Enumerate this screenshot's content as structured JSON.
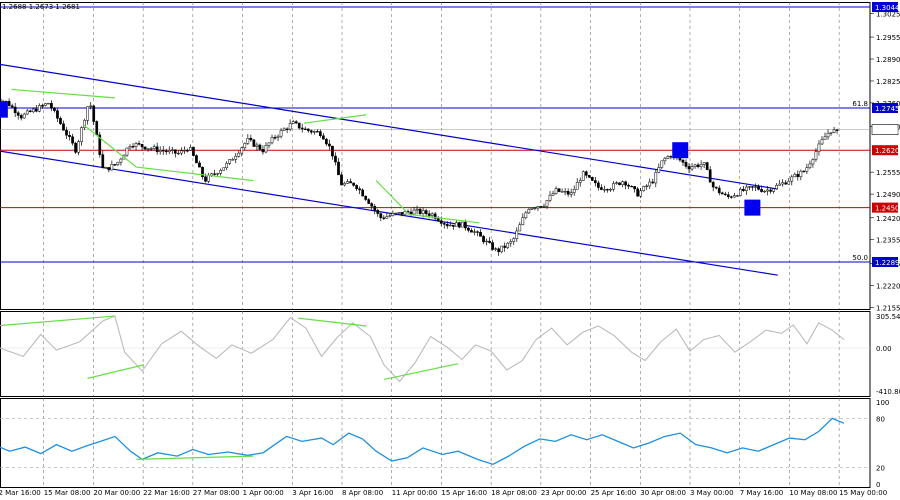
{
  "chart_data": [
    {
      "type": "candlestick",
      "ohlc_readout": "1.2688 1.2673 1.2681",
      "ylim": [
        1.2155,
        1.3044
      ],
      "y_ticks": [
        "1.3025",
        "1.2955",
        "1.2890",
        "1.2825",
        "1.2760",
        "1.2690",
        "1.2555",
        "1.2490",
        "1.2420",
        "1.2355",
        "1.2285",
        "1.2220",
        "1.2155"
      ],
      "x_ticks": [
        "12 Mar 16:00",
        "15 Mar 08:00",
        "20 Mar 00:00",
        "22 Mar 16:00",
        "27 Mar 08:00",
        "1 Apr 00:00",
        "3 Apr 16:00",
        "8 Apr 08:00",
        "11 Apr 00:00",
        "15 Apr 16:00",
        "18 Apr 08:00",
        "23 Apr 00:00",
        "25 Apr 16:00",
        "30 Apr 08:00",
        "3 May 00:00",
        "7 May 16:00",
        "10 May 08:00",
        "15 May 00:00"
      ],
      "x_count": 18,
      "close_path": [
        [
          0,
          1.278
        ],
        [
          0.7,
          1.276
        ],
        [
          1.4,
          1.272
        ],
        [
          2.1,
          1.274
        ],
        [
          2.8,
          1.276
        ],
        [
          3.5,
          1.269
        ],
        [
          4.2,
          1.262
        ],
        [
          4.9,
          1.277
        ],
        [
          5.6,
          1.256
        ],
        [
          6.3,
          1.258
        ],
        [
          7.0,
          1.264
        ],
        [
          8.5,
          1.262
        ],
        [
          9.5,
          1.261
        ],
        [
          10.0,
          1.263
        ],
        [
          10.8,
          1.253
        ],
        [
          12.0,
          1.258
        ],
        [
          13.0,
          1.265
        ],
        [
          13.8,
          1.262
        ],
        [
          14.4,
          1.266
        ],
        [
          15.3,
          1.27
        ],
        [
          16.0,
          1.268
        ],
        [
          16.8,
          1.267
        ],
        [
          17.3,
          1.262
        ],
        [
          17.8,
          1.252
        ],
        [
          18.5,
          1.252
        ],
        [
          19.2,
          1.247
        ],
        [
          19.8,
          1.242
        ],
        [
          20.6,
          1.243
        ],
        [
          21.5,
          1.244
        ],
        [
          22.5,
          1.243
        ],
        [
          23.2,
          1.24
        ],
        [
          24.0,
          1.24
        ],
        [
          24.6,
          1.238
        ],
        [
          25.2,
          1.235
        ],
        [
          25.8,
          1.232
        ],
        [
          26.6,
          1.235
        ],
        [
          27.4,
          1.245
        ],
        [
          28.2,
          1.246
        ],
        [
          28.8,
          1.25
        ],
        [
          29.6,
          1.249
        ],
        [
          30.2,
          1.255
        ],
        [
          31.0,
          1.251
        ],
        [
          31.6,
          1.251
        ],
        [
          32.3,
          1.253
        ],
        [
          33.0,
          1.249
        ],
        [
          33.8,
          1.253
        ],
        [
          34.3,
          1.259
        ],
        [
          34.8,
          1.261
        ],
        [
          35.6,
          1.257
        ],
        [
          36.4,
          1.258
        ],
        [
          36.9,
          1.251
        ],
        [
          37.6,
          1.248
        ],
        [
          38.4,
          1.25
        ],
        [
          39.0,
          1.251
        ],
        [
          39.6,
          1.25
        ],
        [
          40.4,
          1.252
        ],
        [
          41.0,
          1.254
        ],
        [
          41.6,
          1.256
        ],
        [
          42.1,
          1.261
        ],
        [
          42.5,
          1.265
        ],
        [
          42.9,
          1.268
        ],
        [
          43.4,
          1.267
        ]
      ],
      "price_lines": [
        {
          "value": 1.3044,
          "label": "1.3044",
          "color": "#0000cc"
        },
        {
          "value": 1.2745,
          "label": "1.2745",
          "color": "#0000cc",
          "tag": "61.8"
        },
        {
          "value": 1.2681,
          "label": "1.2681",
          "color": "#000000"
        },
        {
          "value": 1.262,
          "label": "1.2620",
          "color": "#cc0000"
        },
        {
          "value": 1.245,
          "label": "1.2450",
          "color": "#cc0000"
        },
        {
          "value": 1.2289,
          "label": "1.2289",
          "color": "#0000cc",
          "tag": "50.0"
        }
      ],
      "trend_channel": {
        "upper": [
          [
            0,
            1.2877
          ],
          [
            40.2,
            1.2505
          ]
        ],
        "lower": [
          [
            0,
            1.262
          ],
          [
            40.2,
            1.225
          ]
        ],
        "color": "#0000cc"
      },
      "divergence_lines": [
        {
          "points": [
            [
              0.9,
              1.28
            ],
            [
              6.2,
              1.2775
            ]
          ]
        },
        {
          "points": [
            [
              4.6,
              1.2695
            ],
            [
              7.3,
              1.257
            ],
            [
              13.3,
              1.253
            ]
          ]
        },
        {
          "points": [
            [
              15.9,
              1.27
            ],
            [
              19.1,
              1.2725
            ]
          ]
        },
        {
          "points": [
            [
              19.6,
              1.253
            ],
            [
              21.3,
              1.243
            ],
            [
              24.9,
              1.2405
            ]
          ]
        }
      ],
      "markers": [
        {
          "x": 0.3,
          "value": 1.274,
          "color": "#0000ee"
        },
        {
          "x": 35.2,
          "value": 1.262,
          "color": "#0000ee"
        },
        {
          "x": 38.9,
          "value": 1.245,
          "color": "#0000ee"
        }
      ],
      "colors": {
        "candle": "#000000",
        "channel": "#0000cc",
        "support": "#cc0000",
        "divergence": "#66dd44",
        "badge": "#0000cc"
      }
    },
    {
      "type": "line",
      "ylim": [
        -410.803,
        305.5401
      ],
      "y_ticks": [
        "305.5401",
        "0.00",
        "-410.803"
      ],
      "series_color": "#bbbbbb",
      "points": [
        [
          0,
          20
        ],
        [
          1.5,
          -80
        ],
        [
          2.4,
          130
        ],
        [
          3.2,
          -20
        ],
        [
          4.4,
          60
        ],
        [
          5.6,
          260
        ],
        [
          6.2,
          305
        ],
        [
          6.7,
          -40
        ],
        [
          7.6,
          -220
        ],
        [
          8.6,
          40
        ],
        [
          9.6,
          160
        ],
        [
          10.5,
          20
        ],
        [
          11.4,
          -100
        ],
        [
          12.2,
          30
        ],
        [
          13.2,
          -50
        ],
        [
          14.3,
          80
        ],
        [
          15.2,
          290
        ],
        [
          16.0,
          190
        ],
        [
          16.8,
          -80
        ],
        [
          17.6,
          100
        ],
        [
          18.4,
          240
        ],
        [
          19.3,
          110
        ],
        [
          20.0,
          -160
        ],
        [
          20.8,
          -320
        ],
        [
          21.6,
          -140
        ],
        [
          22.4,
          110
        ],
        [
          23.3,
          0
        ],
        [
          24.0,
          -110
        ],
        [
          24.7,
          30
        ],
        [
          25.5,
          -30
        ],
        [
          26.3,
          -210
        ],
        [
          27.1,
          -120
        ],
        [
          27.8,
          80
        ],
        [
          28.6,
          190
        ],
        [
          29.4,
          30
        ],
        [
          30.2,
          150
        ],
        [
          31.0,
          210
        ],
        [
          31.8,
          120
        ],
        [
          32.7,
          -40
        ],
        [
          33.4,
          -120
        ],
        [
          34.2,
          60
        ],
        [
          35.0,
          180
        ],
        [
          35.7,
          -30
        ],
        [
          36.4,
          80
        ],
        [
          37.2,
          120
        ],
        [
          38.0,
          -40
        ],
        [
          38.8,
          60
        ],
        [
          39.6,
          170
        ],
        [
          40.4,
          140
        ],
        [
          41.0,
          220
        ],
        [
          41.7,
          40
        ],
        [
          42.3,
          240
        ],
        [
          43.0,
          170
        ],
        [
          43.6,
          80
        ]
      ],
      "divergence_lines": [
        {
          "points": [
            [
              0,
              210
            ],
            [
              6.2,
              305
            ]
          ]
        },
        {
          "points": [
            [
              4.8,
              -290
            ],
            [
              7.7,
              -160
            ]
          ]
        },
        {
          "points": [
            [
              15.6,
              285
            ],
            [
              19.1,
              210
            ]
          ]
        },
        {
          "points": [
            [
              20.0,
              -300
            ],
            [
              23.8,
              -150
            ]
          ]
        }
      ]
    },
    {
      "type": "line",
      "ylim": [
        0,
        100
      ],
      "y_ticks": [
        "100",
        "80",
        "20",
        "0"
      ],
      "series_color": "#1e8fe0",
      "points": [
        [
          0,
          48
        ],
        [
          0.8,
          40
        ],
        [
          1.6,
          45
        ],
        [
          2.4,
          37
        ],
        [
          3.2,
          48
        ],
        [
          4.0,
          40
        ],
        [
          4.8,
          47
        ],
        [
          5.6,
          53
        ],
        [
          6.2,
          58
        ],
        [
          7.0,
          40
        ],
        [
          7.6,
          30
        ],
        [
          8.4,
          38
        ],
        [
          9.4,
          34
        ],
        [
          10.2,
          42
        ],
        [
          11.0,
          36
        ],
        [
          12.0,
          39
        ],
        [
          13.0,
          35
        ],
        [
          13.8,
          38
        ],
        [
          15.0,
          58
        ],
        [
          15.8,
          52
        ],
        [
          16.8,
          56
        ],
        [
          17.4,
          48
        ],
        [
          18.2,
          62
        ],
        [
          18.9,
          55
        ],
        [
          19.6,
          40
        ],
        [
          20.4,
          28
        ],
        [
          21.2,
          32
        ],
        [
          22.0,
          44
        ],
        [
          23.0,
          36
        ],
        [
          23.8,
          40
        ],
        [
          24.8,
          30
        ],
        [
          25.6,
          24
        ],
        [
          26.4,
          34
        ],
        [
          27.2,
          46
        ],
        [
          28.0,
          55
        ],
        [
          28.8,
          52
        ],
        [
          29.6,
          60
        ],
        [
          30.4,
          54
        ],
        [
          31.2,
          60
        ],
        [
          32.0,
          52
        ],
        [
          32.8,
          44
        ],
        [
          33.6,
          50
        ],
        [
          34.4,
          58
        ],
        [
          35.2,
          62
        ],
        [
          36.0,
          48
        ],
        [
          36.8,
          44
        ],
        [
          37.6,
          38
        ],
        [
          38.4,
          44
        ],
        [
          39.2,
          40
        ],
        [
          40.0,
          48
        ],
        [
          40.8,
          56
        ],
        [
          41.6,
          54
        ],
        [
          42.3,
          64
        ],
        [
          43.0,
          80
        ],
        [
          43.6,
          74
        ]
      ],
      "divergence_lines": [
        {
          "points": [
            [
              7.3,
              30
            ],
            [
              13.3,
              34
            ]
          ]
        }
      ]
    }
  ]
}
